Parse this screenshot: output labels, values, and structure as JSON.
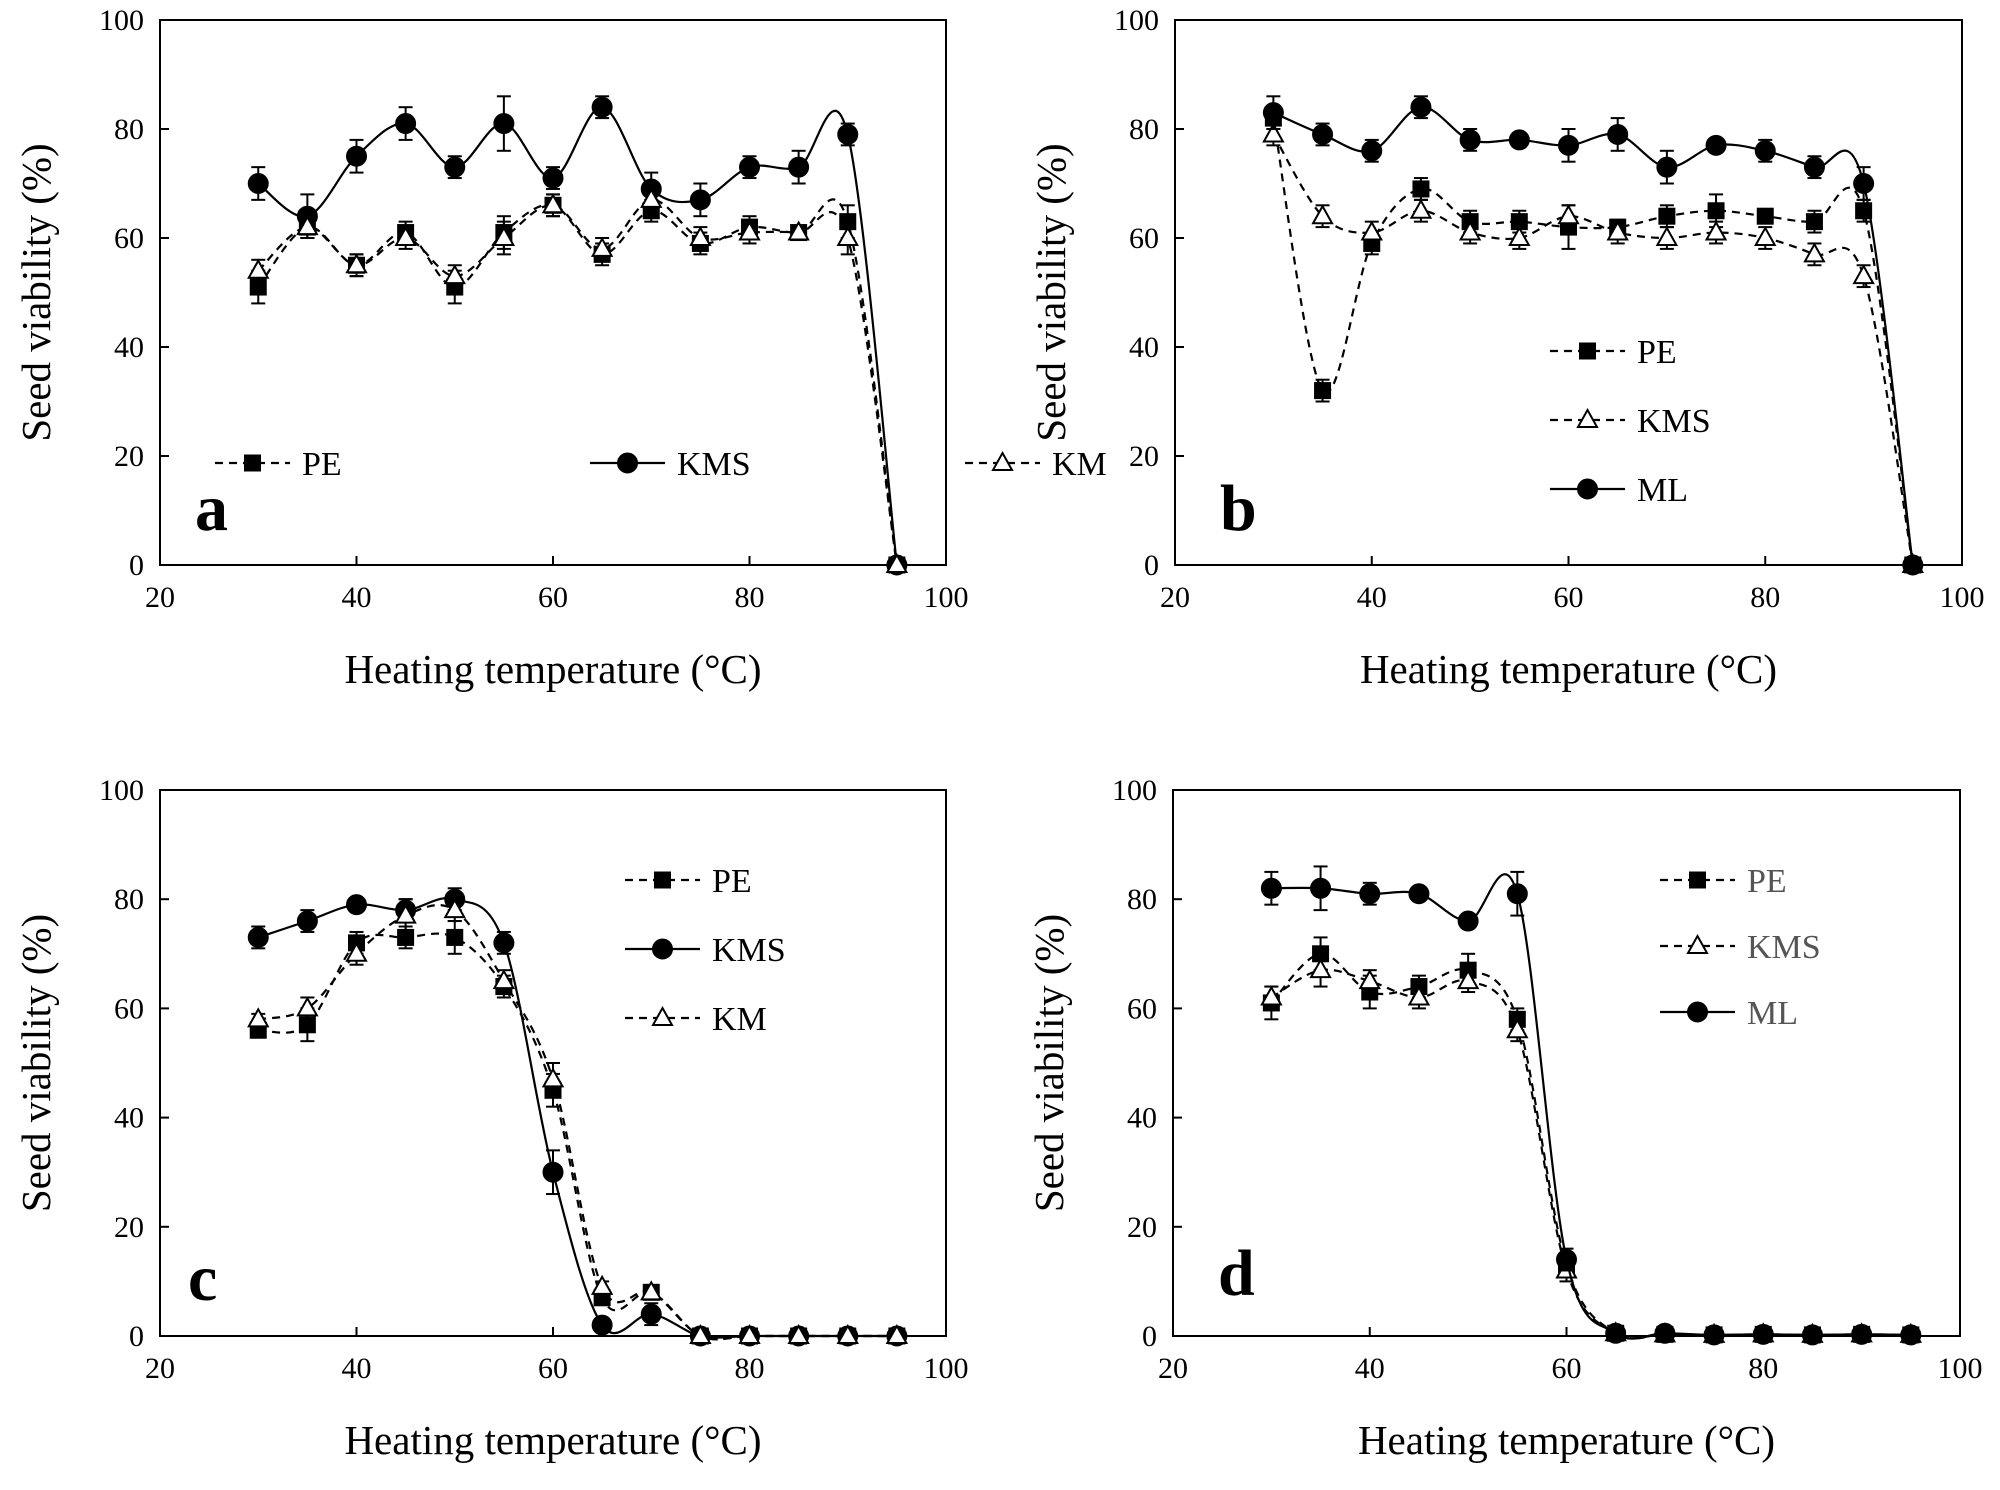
{
  "chart_data": [
    {
      "type": "line",
      "panel_label": "a",
      "xlabel": "Heating temperature (°C)",
      "ylabel": "Seed viability (%)",
      "xlim": [
        20,
        100
      ],
      "ylim": [
        0,
        100
      ],
      "xticks": [
        20,
        40,
        60,
        80,
        100
      ],
      "yticks": [
        0,
        20,
        40,
        60,
        80,
        100
      ],
      "grid": false,
      "legend_placement": "bottom-center, horizontal",
      "x": [
        30,
        35,
        40,
        45,
        50,
        55,
        60,
        65,
        70,
        75,
        80,
        85,
        90,
        95
      ],
      "series": [
        {
          "name": "PE",
          "marker": "square",
          "line": "dashed",
          "values": [
            51,
            62,
            55,
            61,
            51,
            61,
            66,
            57,
            65,
            59,
            62,
            61,
            63,
            0
          ],
          "errors": [
            3,
            2,
            2,
            2,
            3,
            3,
            2,
            2,
            2,
            2,
            2,
            1,
            3,
            0
          ]
        },
        {
          "name": "KMS",
          "marker": "circle",
          "line": "solid",
          "values": [
            70,
            64,
            75,
            81,
            73,
            81,
            71,
            84,
            69,
            67,
            73,
            73,
            79,
            0
          ],
          "errors": [
            3,
            4,
            3,
            3,
            2,
            5,
            2,
            2,
            3,
            3,
            2,
            3,
            2,
            0
          ]
        },
        {
          "name": "KM",
          "marker": "triangle-open",
          "line": "dashed",
          "values": [
            54,
            62,
            55,
            60,
            53,
            60,
            66,
            58,
            67,
            60,
            61,
            61,
            60,
            0
          ],
          "errors": [
            2,
            2,
            2,
            2,
            2,
            3,
            2,
            2,
            3,
            2,
            2,
            1,
            3,
            0
          ]
        }
      ]
    },
    {
      "type": "line",
      "panel_label": "b",
      "xlabel": "Heating temperature (°C)",
      "ylabel": "Seed viability (%)",
      "xlim": [
        20,
        100
      ],
      "ylim": [
        0,
        100
      ],
      "xticks": [
        20,
        40,
        60,
        80,
        100
      ],
      "yticks": [
        0,
        20,
        40,
        60,
        80,
        100
      ],
      "grid": false,
      "legend_placement": "bottom-right, vertical",
      "x": [
        30,
        35,
        40,
        45,
        50,
        55,
        60,
        65,
        70,
        75,
        80,
        85,
        90,
        95
      ],
      "series": [
        {
          "name": "PE",
          "marker": "square",
          "line": "dashed",
          "values": [
            82,
            32,
            59,
            69,
            63,
            63,
            62,
            62,
            64,
            65,
            64,
            63,
            65,
            0
          ],
          "errors": [
            2,
            2,
            2,
            2,
            2,
            2,
            4,
            1,
            2,
            3,
            1,
            2,
            2,
            0
          ]
        },
        {
          "name": "KMS",
          "marker": "triangle-open",
          "line": "dashed",
          "values": [
            79,
            64,
            61,
            65,
            61,
            60,
            64,
            61,
            60,
            61,
            60,
            57,
            53,
            0
          ],
          "errors": [
            2,
            2,
            2,
            2,
            2,
            2,
            2,
            2,
            2,
            2,
            2,
            2,
            2,
            0
          ]
        },
        {
          "name": "ML",
          "marker": "circle",
          "line": "solid",
          "values": [
            83,
            79,
            76,
            84,
            78,
            78,
            77,
            79,
            73,
            77,
            76,
            73,
            70,
            0
          ],
          "errors": [
            3,
            2,
            2,
            2,
            2,
            1,
            3,
            3,
            3,
            1,
            2,
            2,
            3,
            0
          ]
        }
      ]
    },
    {
      "type": "line",
      "panel_label": "c",
      "xlabel": "Heating temperature (°C)",
      "ylabel": "Seed viability (%)",
      "xlim": [
        20,
        100
      ],
      "ylim": [
        0,
        100
      ],
      "xticks": [
        20,
        40,
        60,
        80,
        100
      ],
      "yticks": [
        0,
        20,
        40,
        60,
        80,
        100
      ],
      "grid": false,
      "legend_placement": "top-right, vertical",
      "x": [
        30,
        35,
        40,
        45,
        50,
        55,
        60,
        65,
        70,
        75,
        80,
        85,
        90,
        95
      ],
      "series": [
        {
          "name": "PE",
          "marker": "square",
          "line": "dashed",
          "values": [
            56,
            57,
            72,
            73,
            73,
            64,
            45,
            7,
            8,
            0,
            0,
            0,
            0,
            0
          ],
          "errors": [
            1,
            3,
            2,
            2,
            3,
            2,
            3,
            1,
            1,
            0,
            0,
            0,
            0,
            0
          ]
        },
        {
          "name": "KMS",
          "marker": "circle",
          "line": "solid",
          "values": [
            73,
            76,
            79,
            78,
            80,
            72,
            30,
            2,
            4,
            0,
            0,
            0,
            0,
            0
          ],
          "errors": [
            2,
            2,
            1,
            2,
            2,
            2,
            4,
            1,
            2,
            0,
            0,
            0,
            0,
            0
          ]
        },
        {
          "name": "KM",
          "marker": "triangle-open",
          "line": "dashed",
          "values": [
            58,
            60,
            70,
            77,
            78,
            65,
            47,
            9,
            8,
            0,
            0,
            0,
            0,
            0
          ],
          "errors": [
            1,
            2,
            2,
            3,
            2,
            2,
            3,
            1,
            1,
            0,
            0,
            0,
            0,
            0
          ]
        }
      ]
    },
    {
      "type": "line",
      "panel_label": "d",
      "xlabel": "Heating temperature (°C)",
      "ylabel": "Seed viability (%)",
      "xlim": [
        20,
        100
      ],
      "ylim": [
        0,
        100
      ],
      "xticks": [
        20,
        40,
        60,
        80,
        100
      ],
      "yticks": [
        0,
        20,
        40,
        60,
        80,
        100
      ],
      "grid": false,
      "legend_placement": "top-right, vertical",
      "x": [
        30,
        35,
        40,
        45,
        50,
        55,
        60,
        65,
        70,
        75,
        80,
        85,
        90,
        95
      ],
      "series": [
        {
          "name": "PE",
          "marker": "square",
          "line": "dashed",
          "values": [
            61,
            70,
            63,
            64,
            67,
            58,
            13,
            0.5,
            0.3,
            0.2,
            0.3,
            0.2,
            0.3,
            0.2
          ],
          "errors": [
            3,
            3,
            3,
            2,
            3,
            2,
            2,
            0.5,
            0.3,
            0.2,
            0.3,
            0.2,
            0.3,
            0.2
          ]
        },
        {
          "name": "KMS",
          "marker": "triangle-open",
          "line": "dashed",
          "values": [
            62,
            67,
            65,
            62,
            65,
            56,
            12,
            0.5,
            0.3,
            0.2,
            0.3,
            0.2,
            0.3,
            0.2
          ],
          "errors": [
            2,
            3,
            2,
            2,
            2,
            2,
            2,
            0.5,
            0.3,
            0.2,
            0.3,
            0.2,
            0.3,
            0.2
          ]
        },
        {
          "name": "ML",
          "marker": "circle",
          "line": "solid",
          "values": [
            82,
            82,
            81,
            81,
            76,
            81,
            14,
            0.5,
            0.5,
            0.2,
            0.3,
            0.2,
            0.3,
            0.2
          ],
          "errors": [
            3,
            4,
            2,
            1,
            1,
            4,
            2,
            0.5,
            0.3,
            0.2,
            0.3,
            0.2,
            0.3,
            0.2
          ]
        }
      ],
      "legend_text_color": "#555555"
    }
  ]
}
